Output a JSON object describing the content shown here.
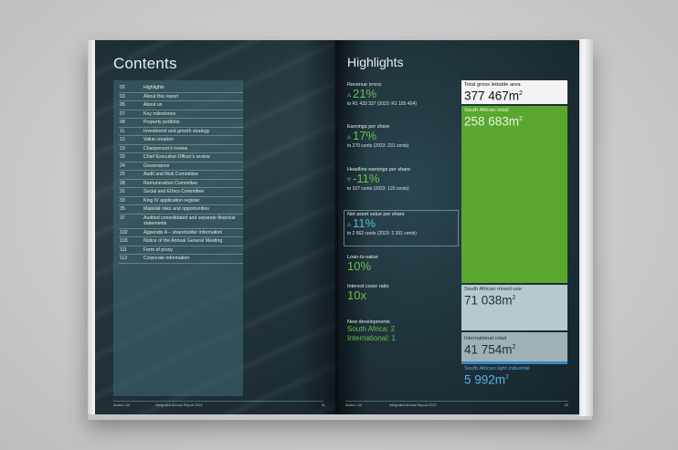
{
  "left_page": {
    "title": "Contents",
    "toc": [
      {
        "num": "02",
        "label": "Highlights"
      },
      {
        "num": "03",
        "label": "About this report"
      },
      {
        "num": "05",
        "label": "About us"
      },
      {
        "num": "07",
        "label": "Key milestones"
      },
      {
        "num": "08",
        "label": "Property portfolio"
      },
      {
        "num": "11",
        "label": "Investment and growth strategy"
      },
      {
        "num": "12",
        "label": "Value creation"
      },
      {
        "num": "19",
        "label": "Chairperson's review"
      },
      {
        "num": "20",
        "label": "Chief Executive Officer's review"
      },
      {
        "num": "24",
        "label": "Governance"
      },
      {
        "num": "25",
        "label": "Audit and Risk Committee"
      },
      {
        "num": "28",
        "label": "Remuneration Committee"
      },
      {
        "num": "31",
        "label": "Social and Ethics Committee"
      },
      {
        "num": "33",
        "label": "King IV application register"
      },
      {
        "num": "35",
        "label": "Material risks and opportunities"
      },
      {
        "num": "37",
        "label": "Audited consolidated and separate financial statements"
      },
      {
        "num": "102",
        "label": "Appendix A – shareholder information"
      },
      {
        "num": "103",
        "label": "Notice of the Annual General Meeting"
      },
      {
        "num": "111",
        "label": "Form of proxy"
      },
      {
        "num": "112",
        "label": "Corporate information"
      }
    ],
    "footer": {
      "company": "Avalon Ltd",
      "report": "Integrated Annual Report 2024",
      "page": "01"
    }
  },
  "right_page": {
    "title": "Highlights",
    "kpis": {
      "revenue": {
        "label": "Revenue",
        "unit": "(R'000)",
        "arrow": "▵",
        "value": "21%",
        "sub": "to R1 433 337 (2023: R1 185 404)"
      },
      "eps": {
        "label": "Earnings per share",
        "arrow": "▵",
        "value": "17%",
        "sub": "to 270 cents (2023: 231 cents)"
      },
      "heps": {
        "label": "Headline earnings per share",
        "arrow": "▿",
        "value": "-11%",
        "sub": "to 107 cents (2023: 120 cents)"
      },
      "nav": {
        "label": "Net asset value per share",
        "arrow": "▵",
        "value": "11%",
        "sub": "to 2 662 cents (2023: 2 391 cents)"
      },
      "ltv": {
        "label": "Loan-to-value",
        "value": "10%"
      },
      "icr": {
        "label": "Interest cover ratio",
        "value": "10x"
      },
      "newdev": {
        "label": "New developments",
        "line1": "South Africa:  2",
        "line2": "International:  1"
      }
    },
    "gla": {
      "total": {
        "label": "Total gross lettable area",
        "value": "377 467m",
        "sup": "2"
      },
      "sa_retail": {
        "label": "South African retail",
        "value": "258 683m",
        "sup": "2"
      },
      "sa_mixed": {
        "label": "South African mixed-use",
        "value": "71 038m",
        "sup": "2"
      },
      "intl_retail": {
        "label": "International retail",
        "value": "41 754m",
        "sup": "2"
      },
      "sa_light": {
        "label": "South African light industrial",
        "value": "5 992m",
        "sup": "2"
      }
    },
    "footer": {
      "company": "Avalon Ltd",
      "report": "Integrated Annual Report 2024",
      "page": "02"
    }
  }
}
